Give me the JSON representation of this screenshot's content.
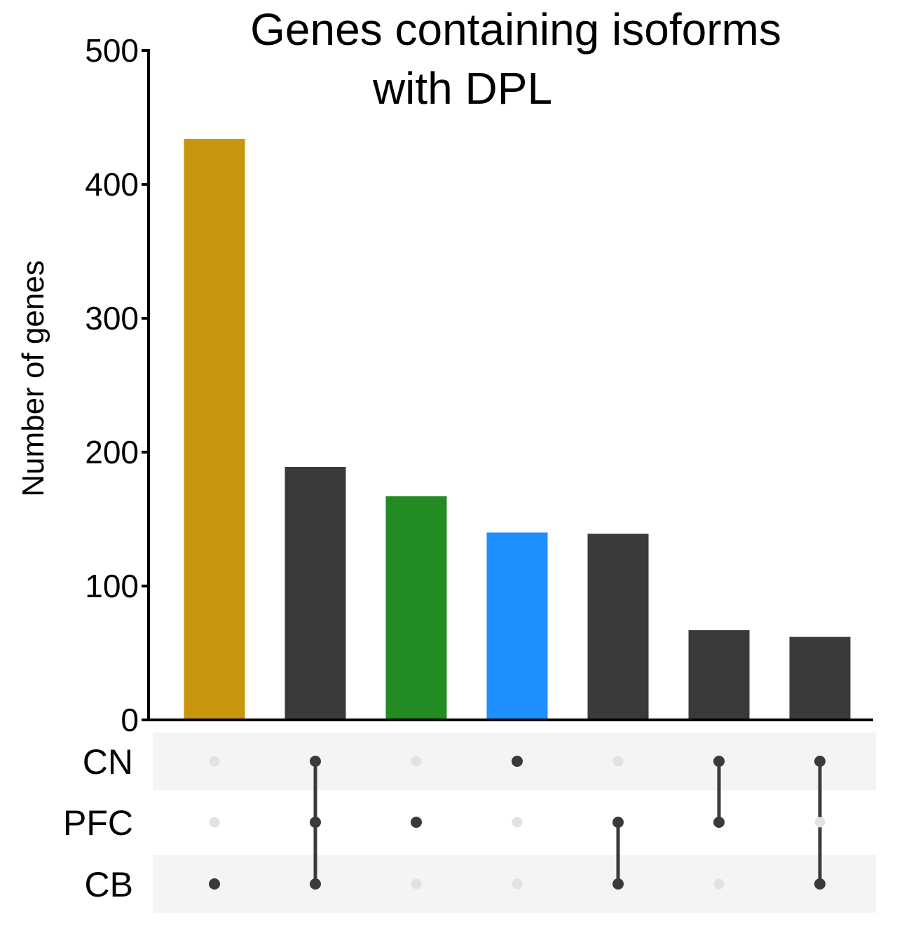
{
  "chart_data": {
    "type": "bar",
    "title_lines": [
      "Genes containing isoforms",
      "with DPL"
    ],
    "ylabel": "Number of genes",
    "xlabel": "",
    "ylim": [
      0,
      500
    ],
    "yticks": [
      0,
      100,
      200,
      300,
      400,
      500
    ],
    "grid": false,
    "sets": [
      "CN",
      "PFC",
      "CB"
    ],
    "intersections": [
      {
        "members": [
          "CB"
        ],
        "value": 434,
        "color": "#c8960c"
      },
      {
        "members": [
          "CN",
          "PFC",
          "CB"
        ],
        "value": 189,
        "color": "#3a3a3a"
      },
      {
        "members": [
          "PFC"
        ],
        "value": 167,
        "color": "#228b22"
      },
      {
        "members": [
          "CN"
        ],
        "value": 140,
        "color": "#1e90ff"
      },
      {
        "members": [
          "PFC",
          "CB"
        ],
        "value": 139,
        "color": "#3a3a3a"
      },
      {
        "members": [
          "CN",
          "PFC"
        ],
        "value": 67,
        "color": "#3a3a3a"
      },
      {
        "members": [
          "CN",
          "CB"
        ],
        "value": 62,
        "color": "#3a3a3a"
      }
    ],
    "colors": {
      "active_dot": "#3a3a3a",
      "inactive_dot": "#e2e2e2",
      "matrix_band": "#f4f4f4",
      "axis": "#000000"
    }
  }
}
